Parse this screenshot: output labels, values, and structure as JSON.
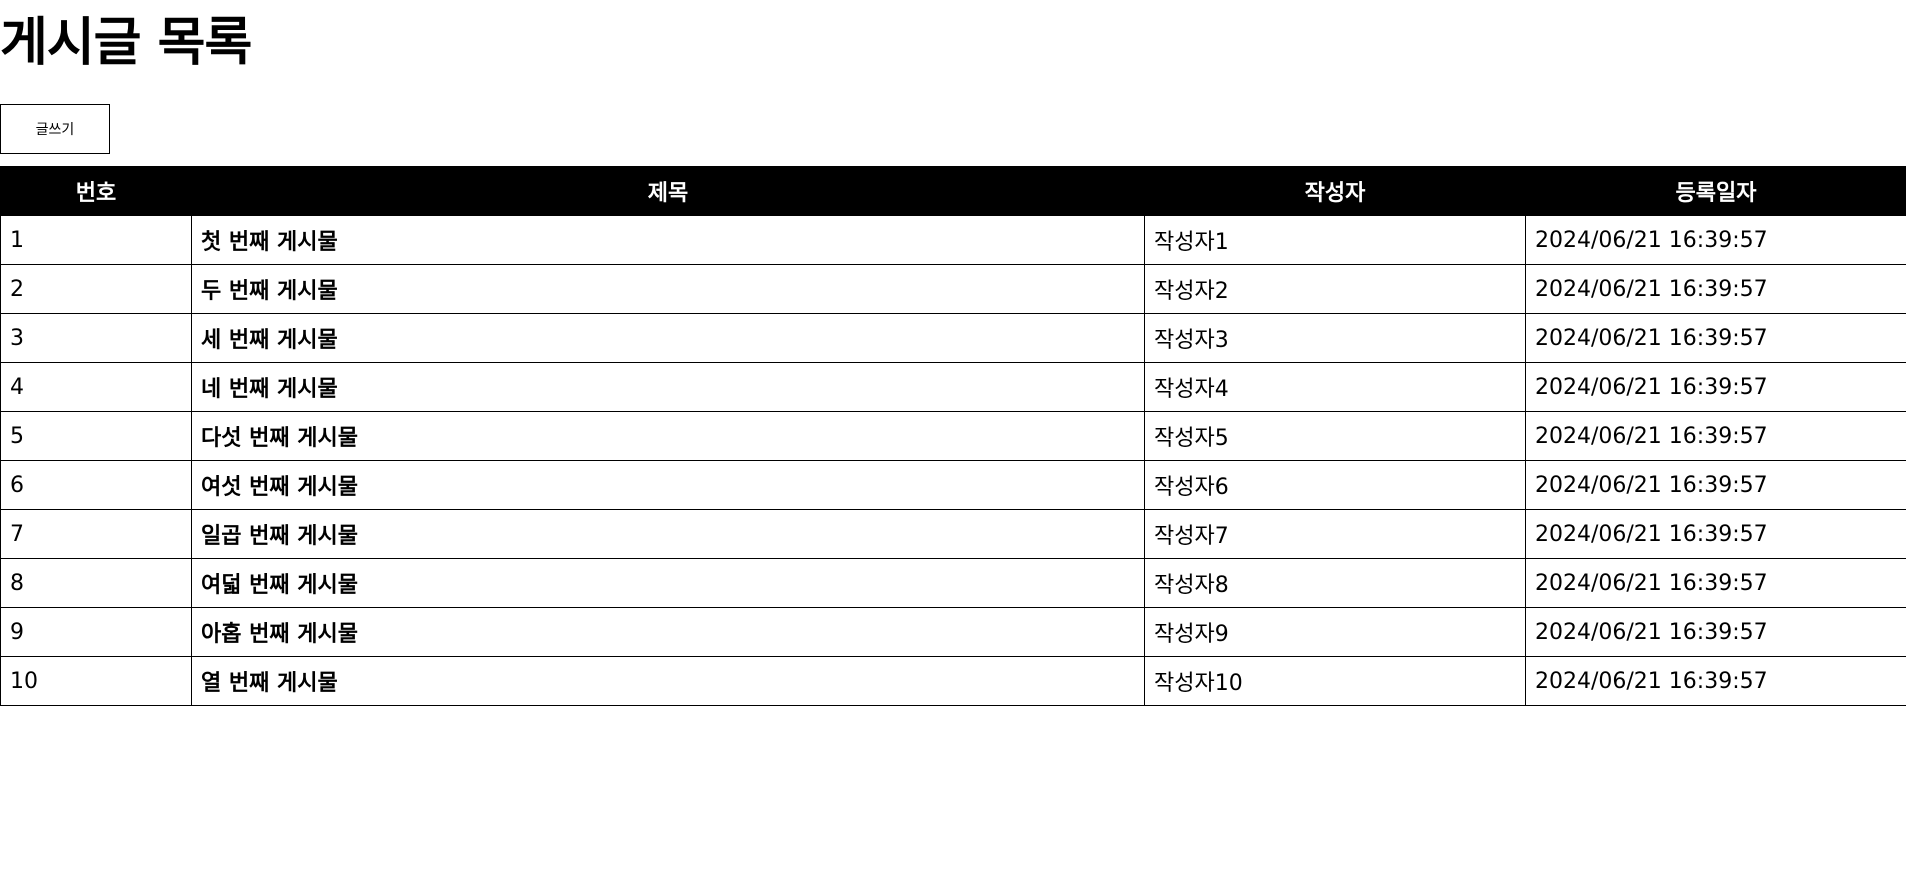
{
  "page": {
    "title": "게시글 목록",
    "write_button_label": "글쓰기"
  },
  "table": {
    "headers": {
      "no": "번호",
      "title": "제목",
      "author": "작성자",
      "date": "등록일자"
    },
    "rows": [
      {
        "no": "1",
        "title": "첫 번째 게시물",
        "author": "작성자1",
        "date": "2024/06/21 16:39:57"
      },
      {
        "no": "2",
        "title": "두 번째 게시물",
        "author": "작성자2",
        "date": "2024/06/21 16:39:57"
      },
      {
        "no": "3",
        "title": "세 번째 게시물",
        "author": "작성자3",
        "date": "2024/06/21 16:39:57"
      },
      {
        "no": "4",
        "title": "네 번째 게시물",
        "author": "작성자4",
        "date": "2024/06/21 16:39:57"
      },
      {
        "no": "5",
        "title": "다섯 번째 게시물",
        "author": "작성자5",
        "date": "2024/06/21 16:39:57"
      },
      {
        "no": "6",
        "title": "여섯 번째 게시물",
        "author": "작성자6",
        "date": "2024/06/21 16:39:57"
      },
      {
        "no": "7",
        "title": "일곱 번째 게시물",
        "author": "작성자7",
        "date": "2024/06/21 16:39:57"
      },
      {
        "no": "8",
        "title": "여덟 번째 게시물",
        "author": "작성자8",
        "date": "2024/06/21 16:39:57"
      },
      {
        "no": "9",
        "title": "아홉 번째 게시물",
        "author": "작성자9",
        "date": "2024/06/21 16:39:57"
      },
      {
        "no": "10",
        "title": "열 번째 게시물",
        "author": "작성자10",
        "date": "2024/06/21 16:39:57"
      }
    ]
  }
}
